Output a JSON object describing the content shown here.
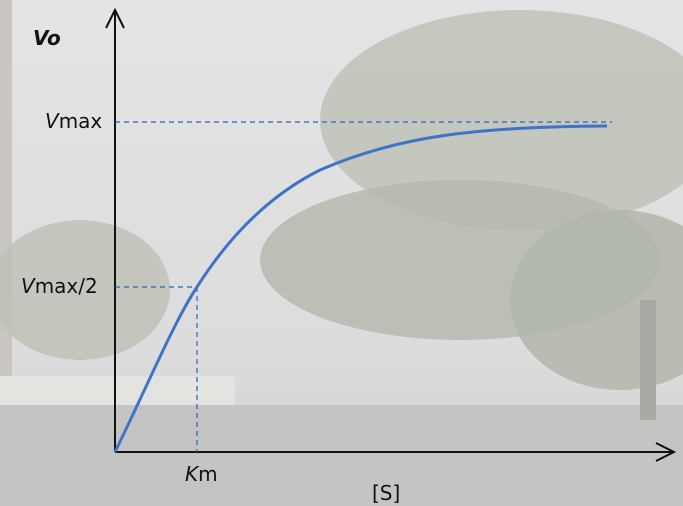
{
  "y_axis_label": {
    "italic": "V",
    "rest": "o"
  },
  "x_axis_label": "[S]",
  "vmax": {
    "italic": "V",
    "rest": "max"
  },
  "half_vmax": {
    "italic": "V",
    "rest": "max/2"
  },
  "km": {
    "italic": "K",
    "rest": "m"
  }
}
